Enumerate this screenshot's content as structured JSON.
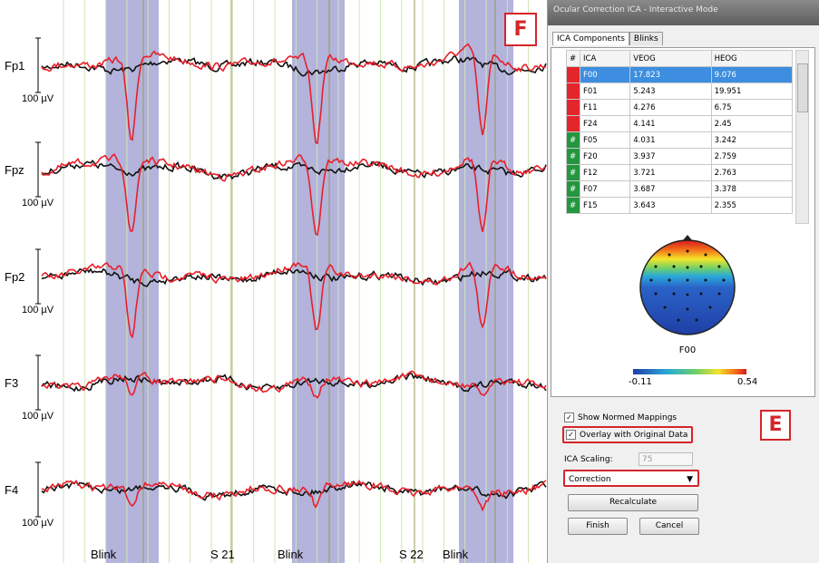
{
  "figure_labels": {
    "f": "F",
    "e": "E"
  },
  "eeg": {
    "channels": [
      {
        "name": "Fp1",
        "scale": "100 µV"
      },
      {
        "name": "Fpz",
        "scale": "100 µV"
      },
      {
        "name": "Fp2",
        "scale": "100 µV"
      },
      {
        "name": "F3",
        "scale": "100 µV"
      },
      {
        "name": "F4",
        "scale": "100 µV"
      }
    ],
    "markers": [
      "Blink",
      "S 21",
      "Blink",
      "S 22",
      "Blink"
    ]
  },
  "panel": {
    "title": "Ocular Correction ICA - Interactive Mode",
    "tabs": [
      "ICA Components",
      "Blinks"
    ],
    "table": {
      "columns": [
        "#",
        "ICA",
        "VEOG",
        "HEOG"
      ],
      "rows": [
        {
          "color": "#e3262b",
          "cells": [
            "F00",
            "17.823",
            "9.076"
          ]
        },
        {
          "color": "#e3262b",
          "cells": [
            "F01",
            "5.243",
            "19.951"
          ]
        },
        {
          "color": "#e3262b",
          "cells": [
            "F11",
            "4.276",
            "6.75"
          ]
        },
        {
          "color": "#e3262b",
          "cells": [
            "F24",
            "4.141",
            "2.45"
          ]
        },
        {
          "color": "#23963f",
          "marker": "#",
          "cells": [
            "F05",
            "4.031",
            "3.242"
          ]
        },
        {
          "color": "#23963f",
          "marker": "#",
          "cells": [
            "F20",
            "3.937",
            "2.759"
          ]
        },
        {
          "color": "#23963f",
          "marker": "#",
          "cells": [
            "F12",
            "3.721",
            "2.763"
          ]
        },
        {
          "color": "#23963f",
          "marker": "#",
          "cells": [
            "F07",
            "3.687",
            "3.378"
          ]
        },
        {
          "color": "#23963f",
          "marker": "#",
          "cells": [
            "F15",
            "3.643",
            "2.355"
          ]
        }
      ]
    },
    "topomap": {
      "label": "F00",
      "colorbar": {
        "min": -0.11,
        "max": 0.54
      }
    },
    "options": {
      "show_normed": "Show Normed Mappings",
      "overlay": "Overlay with Original Data",
      "scaling_label": "ICA Scaling:",
      "scaling_value": 75,
      "mode": "Correction"
    },
    "buttons": [
      "Recalculate",
      "Finish",
      "Cancel"
    ]
  }
}
